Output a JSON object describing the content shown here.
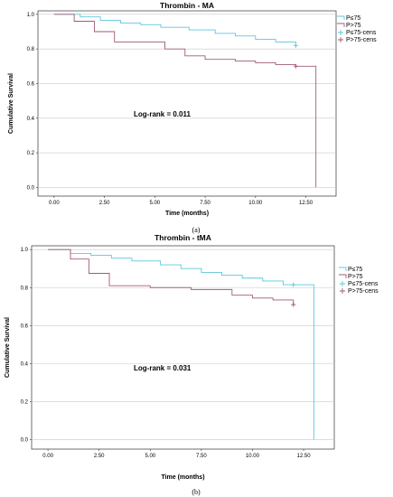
{
  "chart_data": [
    {
      "type": "line",
      "subtype": "kaplan-meier",
      "title": "Thrombin - MA",
      "xlabel": "Time (months)",
      "ylabel": "Cumulative Survival",
      "xlim": [
        -0.8,
        14
      ],
      "ylim": [
        -0.05,
        1.02
      ],
      "xticks": [
        "0.00",
        "2.50",
        "5.00",
        "7.50",
        "10.00",
        "12.50"
      ],
      "yticks": [
        "0.0",
        "0.2",
        "0.4",
        "0.6",
        "0.8",
        "1.0"
      ],
      "grid": "horizontal",
      "annotation": "Log-rank = 0.011",
      "caption": "(a)",
      "legend": [
        "P≤75",
        "P>75",
        "P≤75-cens",
        "P>75-cens"
      ],
      "legend_placement": "right",
      "series": [
        {
          "name": "P≤75",
          "color": "#5bc8dc",
          "x": [
            0,
            1.3,
            2.3,
            3.3,
            4.3,
            5.3,
            6.7,
            8.0,
            9.0,
            10.0,
            11.0,
            12.0
          ],
          "y": [
            1.0,
            0.985,
            0.965,
            0.95,
            0.94,
            0.925,
            0.91,
            0.89,
            0.875,
            0.855,
            0.84,
            0.82
          ]
        },
        {
          "name": "P>75",
          "color": "#a05a7a",
          "x": [
            0,
            1.0,
            2.0,
            3.0,
            5.5,
            6.5,
            7.5,
            9.0,
            10.0,
            11.0,
            12.0,
            13.0
          ],
          "y": [
            1.0,
            0.96,
            0.9,
            0.84,
            0.8,
            0.76,
            0.74,
            0.73,
            0.72,
            0.71,
            0.7,
            0.0
          ]
        }
      ],
      "censored": [
        {
          "series": "P≤75",
          "color": "#5bc8dc",
          "x": [
            12.0
          ],
          "y": [
            0.82
          ]
        },
        {
          "series": "P>75",
          "color": "#a05a7a",
          "x": [
            12.0
          ],
          "y": [
            0.7
          ]
        }
      ]
    },
    {
      "type": "line",
      "subtype": "kaplan-meier",
      "title": "Thrombin - tMA",
      "xlabel": "Time (months)",
      "ylabel": "Cumulative Survival",
      "xlim": [
        -0.8,
        14
      ],
      "ylim": [
        -0.05,
        1.02
      ],
      "xticks": [
        "0.00",
        "2.50",
        "5.00",
        "7.50",
        "10.00",
        "12.50"
      ],
      "yticks": [
        "0.0",
        "0.2",
        "0.4",
        "0.6",
        "0.8",
        "1.0"
      ],
      "grid": "horizontal",
      "annotation": "Log-rank = 0.031",
      "caption": "(b)",
      "legend": [
        "P≤75",
        "P>75",
        "P≤75-cens",
        "P>75-cens"
      ],
      "legend_placement": "right",
      "series": [
        {
          "name": "P≤75",
          "color": "#5bc8dc",
          "x": [
            0,
            1.1,
            2.1,
            3.1,
            4.1,
            5.5,
            6.5,
            7.5,
            8.5,
            9.5,
            10.5,
            11.5,
            13.0
          ],
          "y": [
            1.0,
            0.98,
            0.97,
            0.955,
            0.94,
            0.92,
            0.9,
            0.88,
            0.865,
            0.85,
            0.835,
            0.815,
            0.0
          ]
        },
        {
          "name": "P>75",
          "color": "#a05a7a",
          "x": [
            0,
            1.1,
            2.0,
            3.0,
            5.0,
            7.0,
            9.0,
            10.0,
            11.0,
            12.0
          ],
          "y": [
            1.0,
            0.95,
            0.875,
            0.81,
            0.8,
            0.79,
            0.76,
            0.745,
            0.735,
            0.71
          ]
        }
      ],
      "censored": [
        {
          "series": "P≤75",
          "color": "#5bc8dc",
          "x": [
            12.0
          ],
          "y": [
            0.815
          ]
        },
        {
          "series": "P>75",
          "color": "#a05a7a",
          "x": [
            12.0
          ],
          "y": [
            0.71
          ]
        }
      ]
    }
  ]
}
